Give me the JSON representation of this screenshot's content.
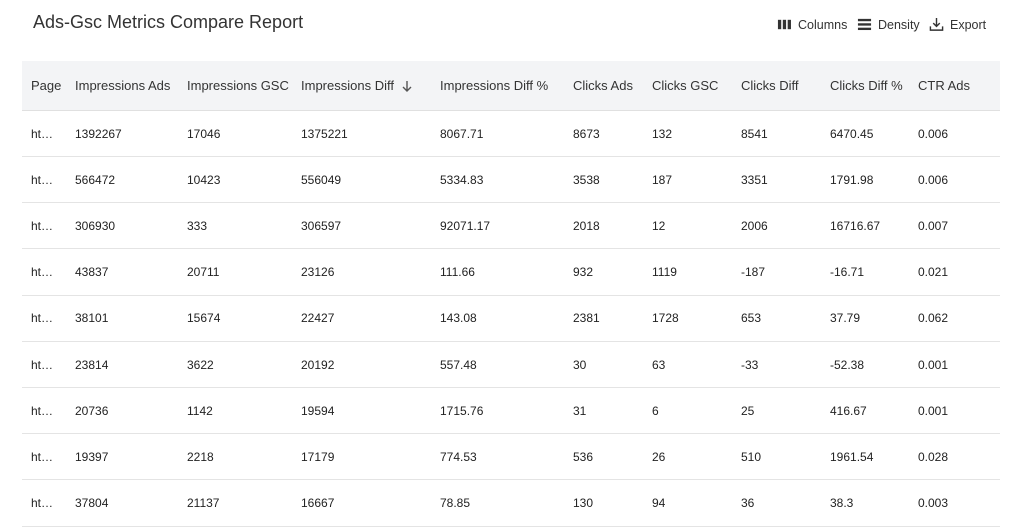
{
  "header": {
    "title": "Ads-Gsc Metrics Compare Report"
  },
  "toolbar": {
    "columns": "Columns",
    "density": "Density",
    "export": "Export"
  },
  "table": {
    "columns": [
      "Page",
      "Impressions Ads",
      "Impressions GSC",
      "Impressions Diff",
      "Impressions Diff %",
      "Clicks Ads",
      "Clicks GSC",
      "Clicks Diff",
      "Clicks Diff %",
      "CTR Ads"
    ],
    "rows": [
      [
        "ht…",
        1392267,
        17046,
        1375221,
        8067.71,
        8673,
        132,
        8541,
        6470.45,
        0.006
      ],
      [
        "ht…",
        566472,
        10423,
        556049,
        5334.83,
        3538,
        187,
        3351,
        1791.98,
        0.006
      ],
      [
        "ht…",
        306930,
        333,
        306597,
        92071.17,
        2018,
        12,
        2006,
        16716.67,
        0.007
      ],
      [
        "ht…",
        43837,
        20711,
        23126,
        111.66,
        932,
        1119,
        -187,
        -16.71,
        0.021
      ],
      [
        "ht…",
        38101,
        15674,
        22427,
        143.08,
        2381,
        1728,
        653,
        37.79,
        0.062
      ],
      [
        "ht…",
        23814,
        3622,
        20192,
        557.48,
        30,
        63,
        -33,
        -52.38,
        0.001
      ],
      [
        "ht…",
        20736,
        1142,
        19594,
        1715.76,
        31,
        6,
        25,
        416.67,
        0.001
      ],
      [
        "ht…",
        19397,
        2218,
        17179,
        774.53,
        536,
        26,
        510,
        1961.54,
        0.028
      ],
      [
        "ht…",
        37804,
        21137,
        16667,
        78.85,
        130,
        94,
        36,
        38.3,
        0.003
      ]
    ]
  }
}
